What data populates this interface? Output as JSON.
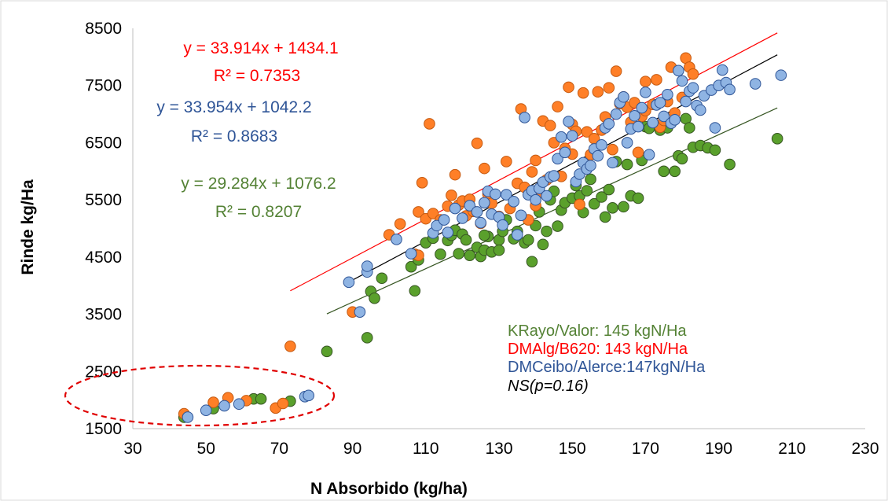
{
  "chart_data": {
    "type": "scatter",
    "xlabel": "N Absorbido (kg/ha)",
    "ylabel": "Rinde kg/Ha",
    "xlim": [
      30,
      230
    ],
    "ylim": [
      1500,
      8500
    ],
    "x_ticks": [
      "30",
      "50",
      "70",
      "90",
      "110",
      "130",
      "150",
      "170",
      "190",
      "210",
      "230"
    ],
    "y_ticks": [
      "1500",
      "2500",
      "3500",
      "4500",
      "5500",
      "6500",
      "7500",
      "8500"
    ],
    "grid": false,
    "legend": "none",
    "series": [
      {
        "key": "green",
        "color": "#5aa02c",
        "stroke": "#375623",
        "trend_color": "#375623",
        "trendline": {
          "slope": 29.284,
          "intercept": 1076.2,
          "x_start": 83,
          "x_end": 206
        },
        "equation": "y = 29.284x + 1076.2",
        "r2": "R² = 0.8207",
        "points": [
          [
            44,
            1700
          ],
          [
            52,
            1850
          ],
          [
            63,
            2020
          ],
          [
            65,
            2020
          ],
          [
            73,
            1980
          ],
          [
            83,
            2850
          ],
          [
            94,
            3090
          ],
          [
            95,
            3900
          ],
          [
            96,
            3780
          ],
          [
            98,
            4130
          ],
          [
            106,
            4330
          ],
          [
            107,
            3910
          ],
          [
            108,
            4450
          ],
          [
            110,
            4750
          ],
          [
            112,
            4830
          ],
          [
            114,
            4550
          ],
          [
            116,
            4790
          ],
          [
            117,
            4880
          ],
          [
            118,
            4970
          ],
          [
            119,
            4560
          ],
          [
            120,
            4900
          ],
          [
            121,
            4800
          ],
          [
            122,
            4530
          ],
          [
            124,
            4670
          ],
          [
            125,
            4510
          ],
          [
            126,
            4620
          ],
          [
            127,
            4860
          ],
          [
            128,
            4590
          ],
          [
            130,
            4800
          ],
          [
            131,
            4950
          ],
          [
            132,
            5150
          ],
          [
            134,
            4820
          ],
          [
            135,
            4950
          ],
          [
            137,
            4750
          ],
          [
            138,
            4800
          ],
          [
            139,
            4420
          ],
          [
            140,
            5050
          ],
          [
            141,
            5290
          ],
          [
            142,
            4720
          ],
          [
            143,
            4950
          ],
          [
            144,
            5500
          ],
          [
            145,
            5650
          ],
          [
            146,
            5040
          ],
          [
            147,
            5320
          ],
          [
            148,
            5450
          ],
          [
            150,
            5530
          ],
          [
            151,
            5750
          ],
          [
            152,
            5570
          ],
          [
            153,
            5280
          ],
          [
            154,
            5660
          ],
          [
            155,
            5860
          ],
          [
            156,
            5430
          ],
          [
            158,
            5550
          ],
          [
            159,
            5200
          ],
          [
            160,
            5680
          ],
          [
            161,
            5360
          ],
          [
            162,
            6170
          ],
          [
            164,
            5380
          ],
          [
            165,
            6120
          ],
          [
            166,
            5570
          ],
          [
            168,
            5530
          ],
          [
            169,
            6190
          ],
          [
            170,
            6780
          ],
          [
            171,
            6750
          ],
          [
            174,
            6720
          ],
          [
            175,
            6000
          ],
          [
            176,
            6760
          ],
          [
            178,
            6000
          ],
          [
            179,
            6270
          ],
          [
            180,
            6220
          ],
          [
            181,
            6920
          ],
          [
            182,
            6760
          ],
          [
            183,
            6420
          ],
          [
            185,
            6450
          ],
          [
            187,
            6410
          ],
          [
            189,
            6370
          ],
          [
            193,
            6120
          ],
          [
            206,
            6570
          ],
          [
            130,
            4620
          ],
          [
            126,
            4880
          ]
        ]
      },
      {
        "key": "red",
        "color": "#ff7f27",
        "stroke": "#c55a11",
        "trend_color": "#ff0000",
        "trendline": {
          "slope": 33.914,
          "intercept": 1434.1,
          "x_start": 73,
          "x_end": 206
        },
        "equation": "y = 33.914x + 1434.1",
        "r2": "R² = 0.7353",
        "points": [
          [
            44,
            1760
          ],
          [
            52,
            1960
          ],
          [
            56,
            2040
          ],
          [
            61,
            1990
          ],
          [
            69,
            1860
          ],
          [
            71,
            1940
          ],
          [
            73,
            2940
          ],
          [
            90,
            3540
          ],
          [
            100,
            4890
          ],
          [
            103,
            5080
          ],
          [
            107,
            4550
          ],
          [
            108,
            4530
          ],
          [
            108,
            5290
          ],
          [
            109,
            5800
          ],
          [
            110,
            5170
          ],
          [
            111,
            6830
          ],
          [
            112,
            5260
          ],
          [
            114,
            5150
          ],
          [
            116,
            5390
          ],
          [
            117,
            5580
          ],
          [
            118,
            5940
          ],
          [
            119,
            5410
          ],
          [
            120,
            5480
          ],
          [
            121,
            5220
          ],
          [
            122,
            5510
          ],
          [
            123,
            5300
          ],
          [
            124,
            6490
          ],
          [
            125,
            5090
          ],
          [
            126,
            6050
          ],
          [
            127,
            5600
          ],
          [
            128,
            5440
          ],
          [
            130,
            5210
          ],
          [
            132,
            6170
          ],
          [
            133,
            5350
          ],
          [
            135,
            5790
          ],
          [
            136,
            7090
          ],
          [
            137,
            5720
          ],
          [
            138,
            5150
          ],
          [
            139,
            5990
          ],
          [
            140,
            6190
          ],
          [
            141,
            5630
          ],
          [
            142,
            6880
          ],
          [
            143,
            5850
          ],
          [
            144,
            6800
          ],
          [
            145,
            6500
          ],
          [
            146,
            7130
          ],
          [
            147,
            5910
          ],
          [
            148,
            6400
          ],
          [
            149,
            7470
          ],
          [
            150,
            6820
          ],
          [
            151,
            6700
          ],
          [
            152,
            5420
          ],
          [
            153,
            7370
          ],
          [
            154,
            6690
          ],
          [
            155,
            6290
          ],
          [
            156,
            6570
          ],
          [
            157,
            7390
          ],
          [
            158,
            6720
          ],
          [
            159,
            6950
          ],
          [
            160,
            7460
          ],
          [
            161,
            6380
          ],
          [
            162,
            7750
          ],
          [
            163,
            7180
          ],
          [
            164,
            7300
          ],
          [
            165,
            7120
          ],
          [
            166,
            6860
          ],
          [
            167,
            7200
          ],
          [
            168,
            6330
          ],
          [
            169,
            6960
          ],
          [
            170,
            7060
          ],
          [
            172,
            7170
          ],
          [
            173,
            7600
          ],
          [
            174,
            6770
          ],
          [
            175,
            6890
          ],
          [
            176,
            7220
          ],
          [
            177,
            7820
          ],
          [
            178,
            7020
          ],
          [
            180,
            7290
          ],
          [
            181,
            7980
          ],
          [
            182,
            7820
          ],
          [
            183,
            7700
          ],
          [
            170,
            7570
          ],
          [
            150,
            6300
          ],
          [
            140,
            5400
          ]
        ]
      },
      {
        "key": "blue",
        "color": "#8fb4e3",
        "stroke": "#2f5597",
        "trend_color": "#000000",
        "trendline": {
          "slope": 33.954,
          "intercept": 1042.2,
          "x_start": 89,
          "x_end": 206
        },
        "equation": "y = 33.954x + 1042.2",
        "r2": "R² = 0.8683",
        "points": [
          [
            45,
            1700
          ],
          [
            50,
            1820
          ],
          [
            55,
            1900
          ],
          [
            59,
            1930
          ],
          [
            77,
            2060
          ],
          [
            78,
            2080
          ],
          [
            89,
            4060
          ],
          [
            92,
            3540
          ],
          [
            94,
            4240
          ],
          [
            94,
            4340
          ],
          [
            102,
            4810
          ],
          [
            106,
            4560
          ],
          [
            112,
            4920
          ],
          [
            113,
            5050
          ],
          [
            115,
            5150
          ],
          [
            116,
            4930
          ],
          [
            118,
            5350
          ],
          [
            120,
            5180
          ],
          [
            122,
            5400
          ],
          [
            124,
            5290
          ],
          [
            125,
            5100
          ],
          [
            126,
            5450
          ],
          [
            127,
            5650
          ],
          [
            128,
            5250
          ],
          [
            129,
            5600
          ],
          [
            130,
            5200
          ],
          [
            131,
            5060
          ],
          [
            132,
            5590
          ],
          [
            134,
            5470
          ],
          [
            135,
            4890
          ],
          [
            136,
            5230
          ],
          [
            137,
            6940
          ],
          [
            138,
            5590
          ],
          [
            139,
            5660
          ],
          [
            140,
            5500
          ],
          [
            141,
            5700
          ],
          [
            142,
            5810
          ],
          [
            143,
            5570
          ],
          [
            144,
            5900
          ],
          [
            145,
            5920
          ],
          [
            146,
            6220
          ],
          [
            147,
            6600
          ],
          [
            148,
            6330
          ],
          [
            149,
            6870
          ],
          [
            150,
            6620
          ],
          [
            151,
            5820
          ],
          [
            152,
            5950
          ],
          [
            153,
            6150
          ],
          [
            154,
            6040
          ],
          [
            155,
            6100
          ],
          [
            156,
            6390
          ],
          [
            157,
            6270
          ],
          [
            158,
            6460
          ],
          [
            159,
            6760
          ],
          [
            160,
            6830
          ],
          [
            161,
            6150
          ],
          [
            162,
            7000
          ],
          [
            163,
            7200
          ],
          [
            164,
            7300
          ],
          [
            165,
            6500
          ],
          [
            166,
            6740
          ],
          [
            167,
            6970
          ],
          [
            168,
            6780
          ],
          [
            169,
            7110
          ],
          [
            170,
            7380
          ],
          [
            171,
            6290
          ],
          [
            172,
            6850
          ],
          [
            173,
            7160
          ],
          [
            174,
            7200
          ],
          [
            175,
            6960
          ],
          [
            176,
            7340
          ],
          [
            177,
            6840
          ],
          [
            178,
            6900
          ],
          [
            179,
            7760
          ],
          [
            180,
            7580
          ],
          [
            181,
            7220
          ],
          [
            182,
            7400
          ],
          [
            183,
            7460
          ],
          [
            184,
            7150
          ],
          [
            185,
            7070
          ],
          [
            186,
            7320
          ],
          [
            188,
            7420
          ],
          [
            189,
            6760
          ],
          [
            190,
            7500
          ],
          [
            191,
            7770
          ],
          [
            192,
            7550
          ],
          [
            193,
            7430
          ],
          [
            200,
            7530
          ],
          [
            207,
            7680
          ]
        ]
      }
    ],
    "annotations": {
      "eq_red": "y = 33.914x + 1434.1",
      "r2_red": "R² = 0.7353",
      "eq_blue": "y = 33.954x + 1042.2",
      "r2_blue": "R² = 0.8683",
      "eq_green": "y = 29.284x + 1076.2",
      "r2_green": "R² = 0.8207",
      "note_kr": "KRayo/Valor: 145 kgN/Ha",
      "note_dma": "DMAlg/B620: 143 kgN/Ha",
      "note_dmc": "DMCeibo/Alerce:147kgN/Ha",
      "note_ns": "NS(p=0.16)",
      "color_green_text": "#548235",
      "color_red_text": "#ff0000",
      "color_blue_text": "#2f5597"
    }
  }
}
